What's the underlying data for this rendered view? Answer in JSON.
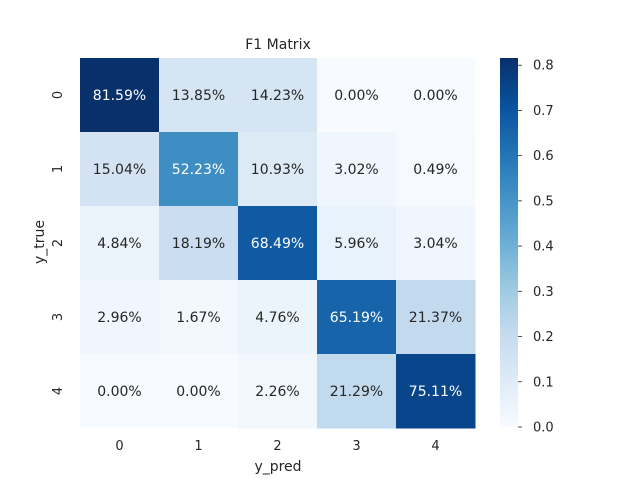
{
  "chart_data": {
    "type": "heatmap",
    "title": "F1 Matrix",
    "xlabel": "y_pred",
    "ylabel": "y_true",
    "x_categories": [
      "0",
      "1",
      "2",
      "3",
      "4"
    ],
    "y_categories": [
      "0",
      "1",
      "2",
      "3",
      "4"
    ],
    "values": [
      [
        0.8159,
        0.1385,
        0.1423,
        0.0,
        0.0
      ],
      [
        0.1504,
        0.5223,
        0.1093,
        0.0302,
        0.0049
      ],
      [
        0.0484,
        0.1819,
        0.6849,
        0.0596,
        0.0304
      ],
      [
        0.0296,
        0.0167,
        0.0476,
        0.6519,
        0.2137
      ],
      [
        0.0,
        0.0,
        0.0226,
        0.2129,
        0.7511
      ]
    ],
    "annotations": [
      [
        "81.59%",
        "13.85%",
        "14.23%",
        "0.00%",
        "0.00%"
      ],
      [
        "15.04%",
        "52.23%",
        "10.93%",
        "3.02%",
        "0.49%"
      ],
      [
        "4.84%",
        "18.19%",
        "68.49%",
        "5.96%",
        "3.04%"
      ],
      [
        "2.96%",
        "1.67%",
        "4.76%",
        "65.19%",
        "21.37%"
      ],
      [
        "0.00%",
        "0.00%",
        "2.26%",
        "21.29%",
        "75.11%"
      ]
    ],
    "colormap": "Blues",
    "colorbar": {
      "vmin": 0.0,
      "vmax": 0.8159,
      "ticks": [
        0.0,
        0.1,
        0.2,
        0.3,
        0.4,
        0.5,
        0.6,
        0.7,
        0.8
      ],
      "tick_labels": [
        "0.0",
        "0.1",
        "0.2",
        "0.3",
        "0.4",
        "0.5",
        "0.6",
        "0.7",
        "0.8"
      ]
    },
    "grid": false,
    "legend": "none"
  }
}
